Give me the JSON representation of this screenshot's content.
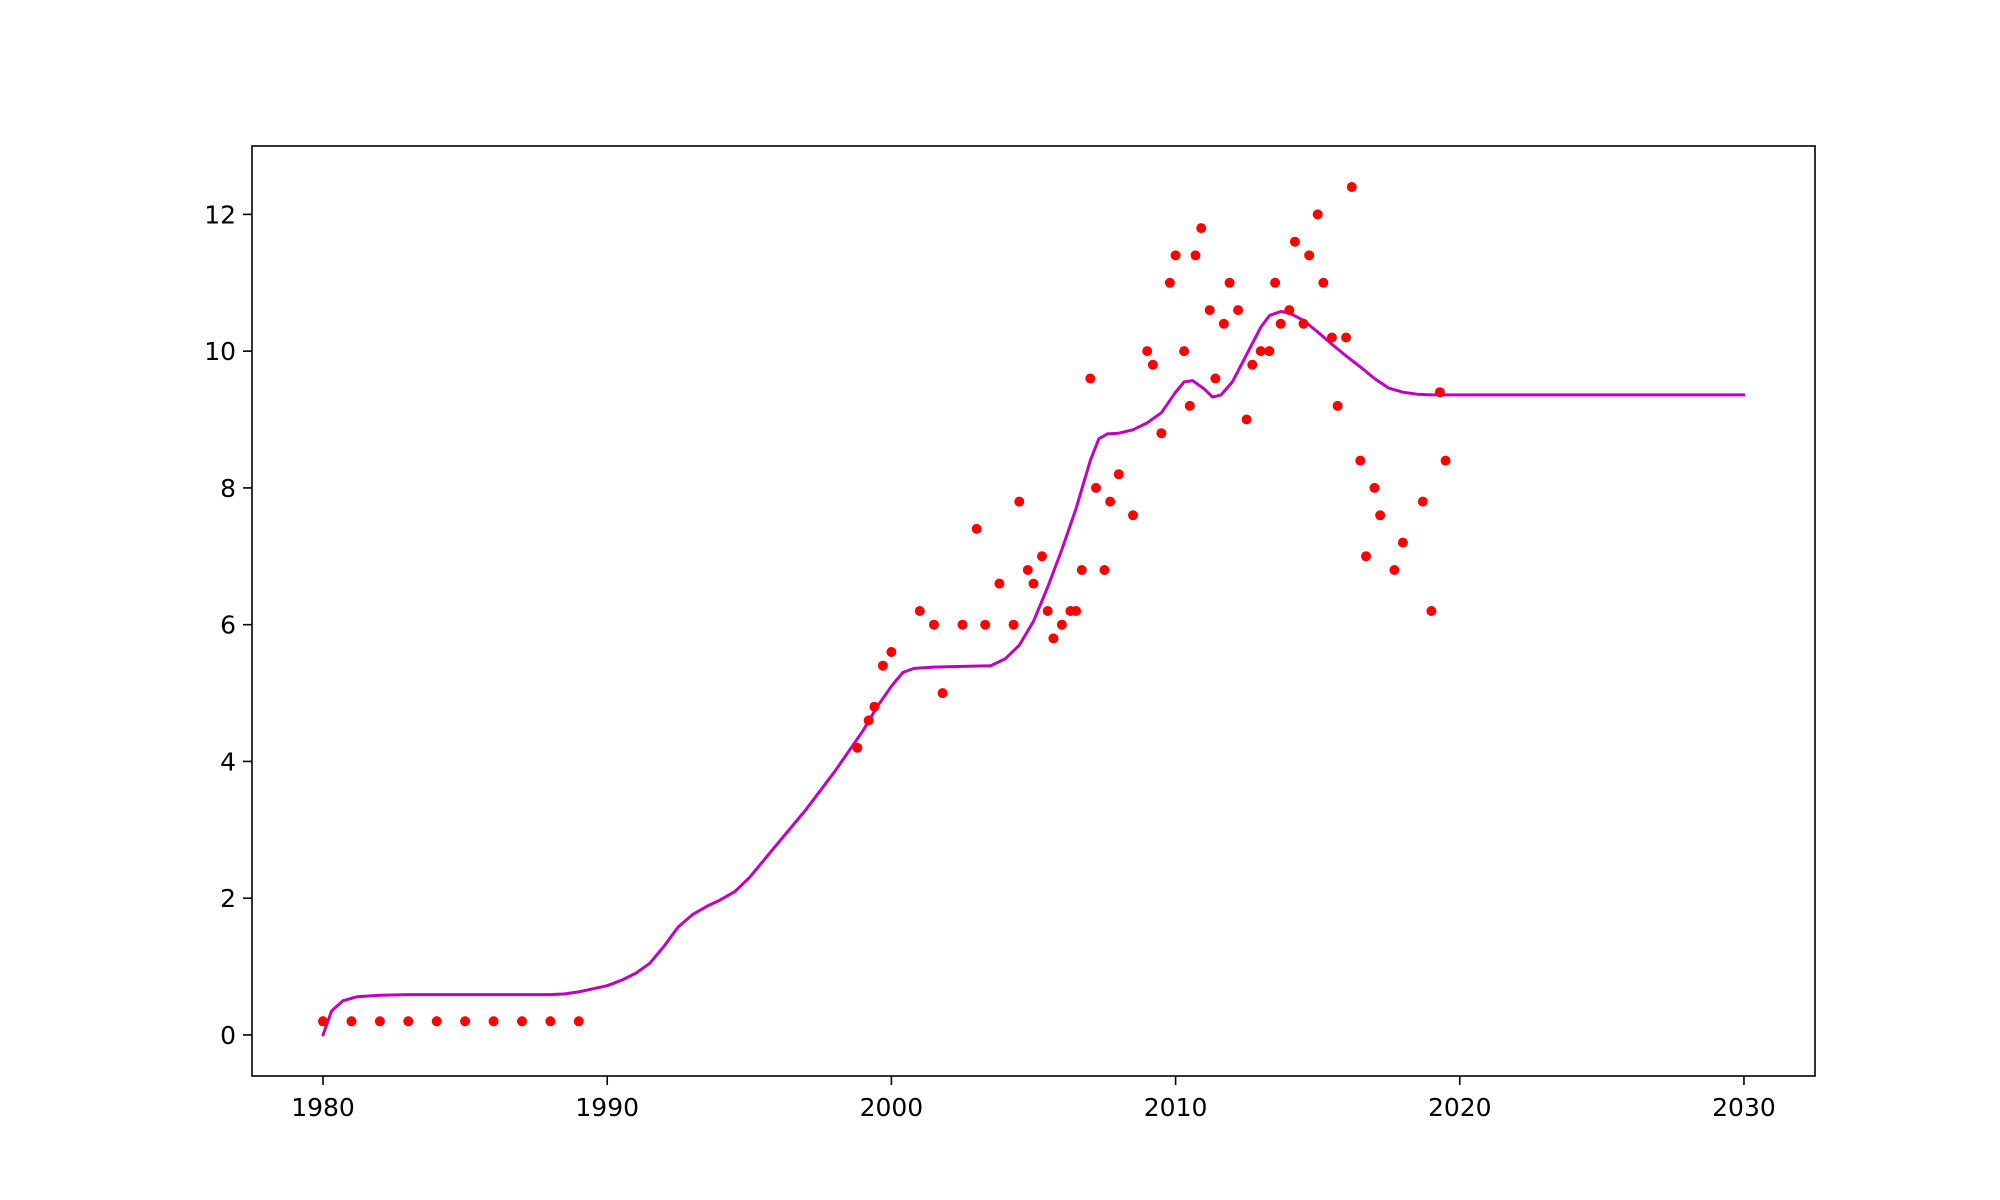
{
  "chart_data": {
    "type": "scatter",
    "title": "",
    "xlabel": "",
    "ylabel": "",
    "xlim": [
      1977.5,
      2032.5
    ],
    "ylim": [
      -0.6,
      13.0
    ],
    "x_ticks": [
      1980,
      1990,
      2000,
      2010,
      2020,
      2030
    ],
    "x_tick_labels": [
      "1980",
      "1990",
      "2000",
      "2010",
      "2020",
      "2030"
    ],
    "y_ticks": [
      0,
      2,
      4,
      6,
      8,
      10,
      12
    ],
    "y_tick_labels": [
      "0",
      "2",
      "4",
      "6",
      "8",
      "10",
      "12"
    ],
    "grid": false,
    "series": [
      {
        "kind": "scatter",
        "color": "#ff0000",
        "points": [
          [
            1980.0,
            0.2
          ],
          [
            1981.0,
            0.2
          ],
          [
            1982.0,
            0.2
          ],
          [
            1983.0,
            0.2
          ],
          [
            1984.0,
            0.2
          ],
          [
            1985.0,
            0.2
          ],
          [
            1986.0,
            0.2
          ],
          [
            1987.0,
            0.2
          ],
          [
            1988.0,
            0.2
          ],
          [
            1989.0,
            0.2
          ],
          [
            1998.8,
            4.2
          ],
          [
            1999.2,
            4.6
          ],
          [
            1999.4,
            4.8
          ],
          [
            1999.7,
            5.4
          ],
          [
            2000.0,
            5.6
          ],
          [
            2001.0,
            6.2
          ],
          [
            2001.5,
            6.0
          ],
          [
            2001.8,
            5.0
          ],
          [
            2002.5,
            6.0
          ],
          [
            2003.0,
            7.4
          ],
          [
            2003.3,
            6.0
          ],
          [
            2003.8,
            6.6
          ],
          [
            2004.3,
            6.0
          ],
          [
            2004.5,
            7.8
          ],
          [
            2004.8,
            6.8
          ],
          [
            2005.0,
            6.6
          ],
          [
            2005.3,
            7.0
          ],
          [
            2005.5,
            6.2
          ],
          [
            2005.7,
            5.8
          ],
          [
            2006.0,
            6.0
          ],
          [
            2006.3,
            6.2
          ],
          [
            2006.5,
            6.2
          ],
          [
            2006.7,
            6.8
          ],
          [
            2007.0,
            9.6
          ],
          [
            2007.2,
            8.0
          ],
          [
            2007.5,
            6.8
          ],
          [
            2007.7,
            7.8
          ],
          [
            2008.0,
            8.2
          ],
          [
            2008.5,
            7.6
          ],
          [
            2009.0,
            10.0
          ],
          [
            2009.2,
            9.8
          ],
          [
            2009.5,
            8.8
          ],
          [
            2009.8,
            11.0
          ],
          [
            2010.0,
            11.4
          ],
          [
            2010.3,
            10.0
          ],
          [
            2010.5,
            9.2
          ],
          [
            2010.7,
            11.4
          ],
          [
            2010.9,
            11.8
          ],
          [
            2011.2,
            10.6
          ],
          [
            2011.4,
            9.6
          ],
          [
            2011.7,
            10.4
          ],
          [
            2011.9,
            11.0
          ],
          [
            2012.2,
            10.6
          ],
          [
            2012.5,
            9.0
          ],
          [
            2012.7,
            9.8
          ],
          [
            2013.0,
            10.0
          ],
          [
            2013.3,
            10.0
          ],
          [
            2013.5,
            11.0
          ],
          [
            2013.7,
            10.4
          ],
          [
            2014.0,
            10.6
          ],
          [
            2014.2,
            11.6
          ],
          [
            2014.5,
            10.4
          ],
          [
            2014.7,
            11.4
          ],
          [
            2015.0,
            12.0
          ],
          [
            2015.2,
            11.0
          ],
          [
            2015.5,
            10.2
          ],
          [
            2015.7,
            9.2
          ],
          [
            2016.0,
            10.2
          ],
          [
            2016.2,
            12.4
          ],
          [
            2016.5,
            8.4
          ],
          [
            2016.7,
            7.0
          ],
          [
            2017.0,
            8.0
          ],
          [
            2017.2,
            7.6
          ],
          [
            2017.7,
            6.8
          ],
          [
            2018.0,
            7.2
          ],
          [
            2018.7,
            7.8
          ],
          [
            2019.0,
            6.2
          ],
          [
            2019.3,
            9.4
          ],
          [
            2019.5,
            8.4
          ]
        ]
      },
      {
        "kind": "line",
        "color": "#bf00bf",
        "points": [
          [
            1980.0,
            0.0
          ],
          [
            1980.3,
            0.35
          ],
          [
            1980.7,
            0.5
          ],
          [
            1981.2,
            0.56
          ],
          [
            1982.0,
            0.58
          ],
          [
            1983.0,
            0.59
          ],
          [
            1988.0,
            0.59
          ],
          [
            1988.5,
            0.6
          ],
          [
            1989.0,
            0.63
          ],
          [
            1990.0,
            0.72
          ],
          [
            1990.5,
            0.8
          ],
          [
            1991.0,
            0.9
          ],
          [
            1991.5,
            1.05
          ],
          [
            1992.0,
            1.3
          ],
          [
            1992.5,
            1.58
          ],
          [
            1993.0,
            1.76
          ],
          [
            1993.5,
            1.88
          ],
          [
            1994.0,
            1.98
          ],
          [
            1994.5,
            2.1
          ],
          [
            1995.0,
            2.3
          ],
          [
            1996.0,
            2.8
          ],
          [
            1997.0,
            3.3
          ],
          [
            1998.0,
            3.85
          ],
          [
            1999.0,
            4.45
          ],
          [
            1999.5,
            4.8
          ],
          [
            2000.0,
            5.1
          ],
          [
            2000.4,
            5.3
          ],
          [
            2000.8,
            5.36
          ],
          [
            2001.5,
            5.38
          ],
          [
            2002.5,
            5.39
          ],
          [
            2003.5,
            5.4
          ],
          [
            2004.0,
            5.5
          ],
          [
            2004.5,
            5.7
          ],
          [
            2005.0,
            6.05
          ],
          [
            2005.5,
            6.55
          ],
          [
            2006.0,
            7.1
          ],
          [
            2006.5,
            7.7
          ],
          [
            2007.0,
            8.4
          ],
          [
            2007.3,
            8.72
          ],
          [
            2007.6,
            8.79
          ],
          [
            2008.0,
            8.8
          ],
          [
            2008.5,
            8.85
          ],
          [
            2009.0,
            8.95
          ],
          [
            2009.5,
            9.1
          ],
          [
            2010.0,
            9.4
          ],
          [
            2010.3,
            9.55
          ],
          [
            2010.6,
            9.57
          ],
          [
            2011.0,
            9.45
          ],
          [
            2011.3,
            9.33
          ],
          [
            2011.6,
            9.36
          ],
          [
            2012.0,
            9.55
          ],
          [
            2012.5,
            9.95
          ],
          [
            2013.0,
            10.35
          ],
          [
            2013.3,
            10.52
          ],
          [
            2013.7,
            10.58
          ],
          [
            2014.0,
            10.56
          ],
          [
            2014.5,
            10.45
          ],
          [
            2015.0,
            10.28
          ],
          [
            2015.5,
            10.1
          ],
          [
            2016.0,
            9.93
          ],
          [
            2016.5,
            9.77
          ],
          [
            2017.0,
            9.6
          ],
          [
            2017.5,
            9.46
          ],
          [
            2018.0,
            9.4
          ],
          [
            2018.5,
            9.37
          ],
          [
            2019.0,
            9.36
          ],
          [
            2020.0,
            9.36
          ],
          [
            2030.0,
            9.36
          ]
        ]
      }
    ]
  }
}
